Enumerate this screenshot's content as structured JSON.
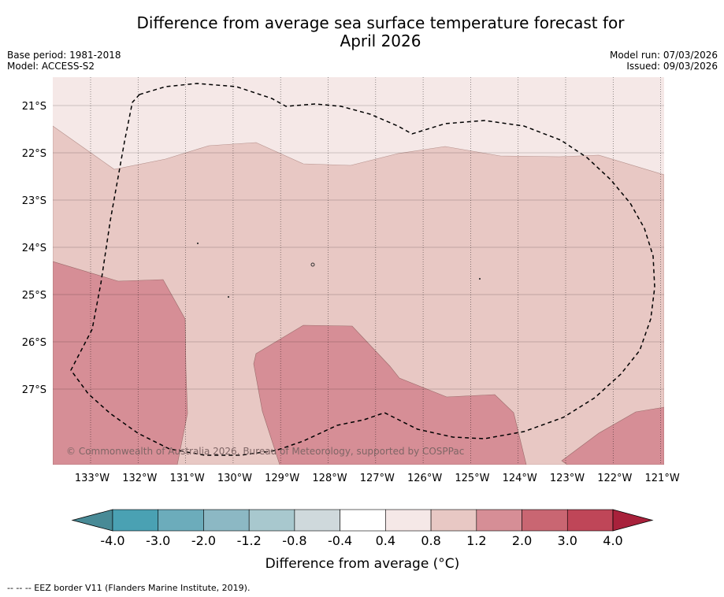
{
  "title_line1": "Difference from average sea surface temperature forecast for",
  "title_line2": "April 2026",
  "base_period": "Base period: 1981-2018",
  "model": "Model: ACCESS-S2",
  "model_run": "Model run: 07/03/2026",
  "issued": "Issued: 09/03/2026",
  "copyright": "© Commonwealth of Australia 2026, Bureau of Meteorology, supported by COSPPac",
  "lat_labels": [
    "21°S",
    "22°S",
    "23°S",
    "24°S",
    "25°S",
    "26°S",
    "27°S"
  ],
  "lon_labels": [
    "133°W",
    "132°W",
    "131°W",
    "130°W",
    "129°W",
    "128°W",
    "127°W",
    "126°W",
    "125°W",
    "124°W",
    "123°W",
    "122°W",
    "121°W"
  ],
  "colorbar": {
    "title": "Difference from average (°C)",
    "tick_labels": [
      "-4.0",
      "-3.0",
      "-2.0",
      "-1.2",
      "-0.8",
      "-0.4",
      "0.4",
      "0.8",
      "1.2",
      "2.0",
      "3.0",
      "4.0"
    ],
    "colors": [
      "#488a96",
      "#4aa1b3",
      "#6cacbb",
      "#8cb8c4",
      "#a8c8ce",
      "#cfd9dc",
      "#ffffff",
      "#f5e8e7",
      "#e8c8c4",
      "#d68e96",
      "#c96672",
      "#bf4658",
      "#a8213b"
    ]
  },
  "legend_footnote": "--  --  -- EEZ border V11 (Flanders Marine Institute, 2019).",
  "map_colors": {
    "band_0_4_0_8": "#f5e8e7",
    "band_0_8_1_2": "#e8c8c4",
    "band_1_2_2_0": "#d68e96"
  }
}
